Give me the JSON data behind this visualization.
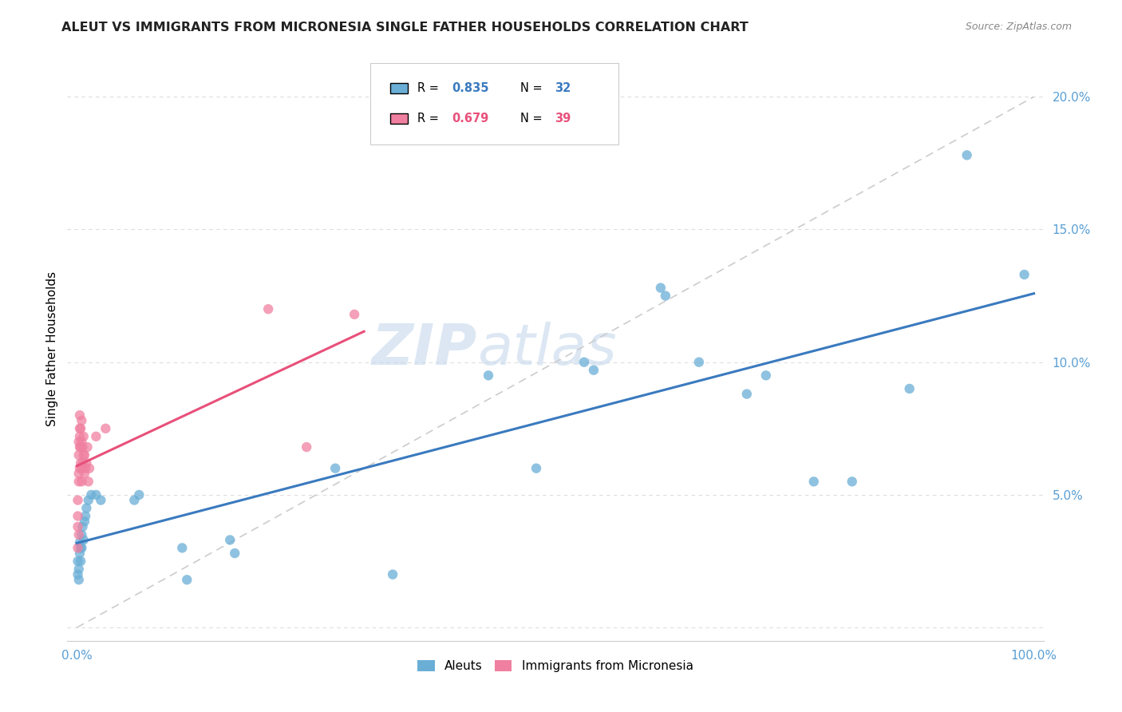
{
  "title": "ALEUT VS IMMIGRANTS FROM MICRONESIA SINGLE FATHER HOUSEHOLDS CORRELATION CHART",
  "source": "Source: ZipAtlas.com",
  "ylabel": "Single Father Households",
  "x_ticks": [
    0.0,
    0.2,
    0.4,
    0.6,
    0.8,
    1.0
  ],
  "x_tick_labels": [
    "0.0%",
    "",
    "",
    "",
    "",
    "100.0%"
  ],
  "y_ticks": [
    0.0,
    0.05,
    0.1,
    0.15,
    0.2
  ],
  "y_tick_labels": [
    "",
    "5.0%",
    "10.0%",
    "15.0%",
    "20.0%"
  ],
  "aleuts_scatter": [
    [
      0.001,
      0.02
    ],
    [
      0.001,
      0.025
    ],
    [
      0.002,
      0.022
    ],
    [
      0.002,
      0.018
    ],
    [
      0.003,
      0.028
    ],
    [
      0.003,
      0.032
    ],
    [
      0.004,
      0.03
    ],
    [
      0.004,
      0.025
    ],
    [
      0.005,
      0.035
    ],
    [
      0.005,
      0.03
    ],
    [
      0.006,
      0.038
    ],
    [
      0.007,
      0.033
    ],
    [
      0.008,
      0.04
    ],
    [
      0.009,
      0.042
    ],
    [
      0.01,
      0.045
    ],
    [
      0.012,
      0.048
    ],
    [
      0.015,
      0.05
    ],
    [
      0.02,
      0.05
    ],
    [
      0.025,
      0.048
    ],
    [
      0.06,
      0.048
    ],
    [
      0.065,
      0.05
    ],
    [
      0.11,
      0.03
    ],
    [
      0.115,
      0.018
    ],
    [
      0.16,
      0.033
    ],
    [
      0.165,
      0.028
    ],
    [
      0.27,
      0.06
    ],
    [
      0.33,
      0.02
    ],
    [
      0.43,
      0.095
    ],
    [
      0.48,
      0.06
    ],
    [
      0.53,
      0.1
    ],
    [
      0.54,
      0.097
    ],
    [
      0.61,
      0.128
    ],
    [
      0.615,
      0.125
    ],
    [
      0.65,
      0.1
    ],
    [
      0.7,
      0.088
    ],
    [
      0.72,
      0.095
    ],
    [
      0.77,
      0.055
    ],
    [
      0.81,
      0.055
    ],
    [
      0.87,
      0.09
    ],
    [
      0.93,
      0.178
    ],
    [
      0.99,
      0.133
    ]
  ],
  "micronesia_scatter": [
    [
      0.001,
      0.03
    ],
    [
      0.001,
      0.038
    ],
    [
      0.001,
      0.042
    ],
    [
      0.001,
      0.048
    ],
    [
      0.002,
      0.035
    ],
    [
      0.002,
      0.055
    ],
    [
      0.002,
      0.058
    ],
    [
      0.002,
      0.065
    ],
    [
      0.002,
      0.07
    ],
    [
      0.003,
      0.06
    ],
    [
      0.003,
      0.068
    ],
    [
      0.003,
      0.072
    ],
    [
      0.003,
      0.075
    ],
    [
      0.003,
      0.08
    ],
    [
      0.004,
      0.062
    ],
    [
      0.004,
      0.068
    ],
    [
      0.004,
      0.075
    ],
    [
      0.005,
      0.055
    ],
    [
      0.005,
      0.06
    ],
    [
      0.005,
      0.07
    ],
    [
      0.005,
      0.078
    ],
    [
      0.006,
      0.062
    ],
    [
      0.006,
      0.068
    ],
    [
      0.007,
      0.065
    ],
    [
      0.007,
      0.072
    ],
    [
      0.008,
      0.058
    ],
    [
      0.008,
      0.065
    ],
    [
      0.009,
      0.06
    ],
    [
      0.01,
      0.062
    ],
    [
      0.011,
      0.068
    ],
    [
      0.012,
      0.055
    ],
    [
      0.013,
      0.06
    ],
    [
      0.02,
      0.072
    ],
    [
      0.03,
      0.075
    ],
    [
      0.2,
      0.12
    ],
    [
      0.24,
      0.068
    ],
    [
      0.29,
      0.118
    ]
  ],
  "aleuts_scatter_color": "#6aaed6",
  "micronesia_scatter_color": "#f080a0",
  "aleuts_line_color": "#3a7abf",
  "micronesia_line_color": "#e8507a",
  "diagonal_color": "#cccccc",
  "watermark_color": "#c5d8ec",
  "background_color": "#ffffff",
  "grid_color": "#dddddd",
  "tick_color": "#5a9fd4",
  "title_color": "#222222",
  "source_color": "#888888"
}
